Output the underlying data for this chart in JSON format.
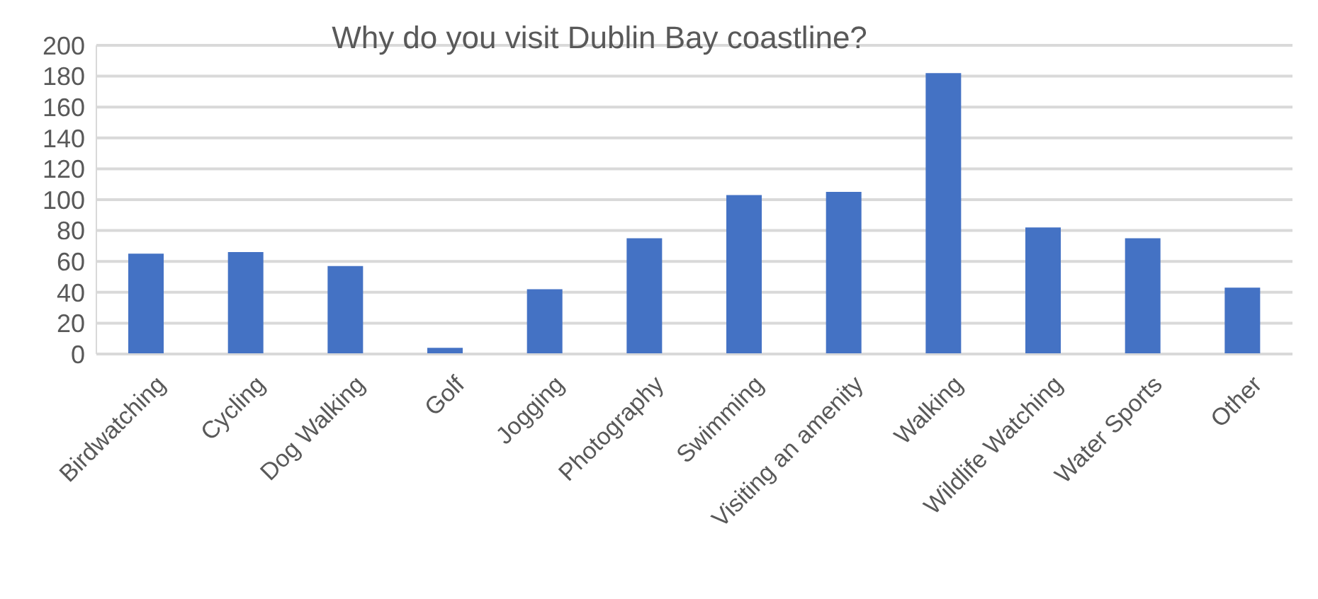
{
  "chart_data": {
    "type": "bar",
    "title": "Why do you visit Dublin Bay coastline?",
    "categories": [
      "Birdwatching",
      "Cycling",
      "Dog Walking",
      "Golf",
      "Jogging",
      "Photography",
      "Swimming",
      "Visiting an amenity",
      "Walking",
      "Wildlife Watching",
      "Water Sports",
      "Other"
    ],
    "values": [
      65,
      66,
      57,
      4,
      42,
      75,
      103,
      105,
      182,
      82,
      75,
      43
    ],
    "color": "#4472c4",
    "ylim": [
      0,
      200
    ],
    "yticks": [
      0,
      20,
      40,
      60,
      80,
      100,
      120,
      140,
      160,
      180,
      200
    ],
    "grid": "y"
  }
}
